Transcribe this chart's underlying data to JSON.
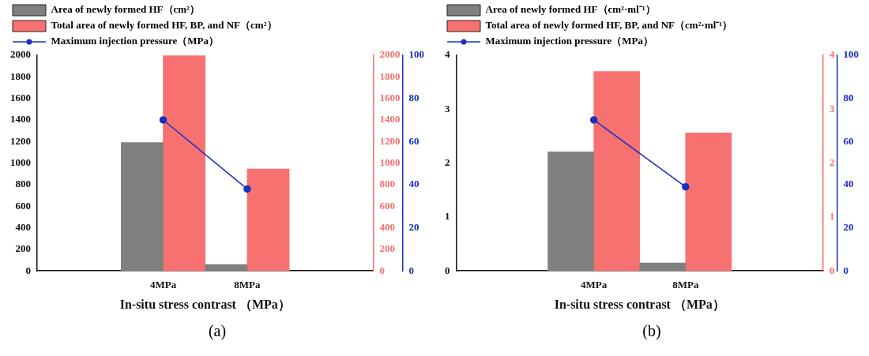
{
  "chart_data": [
    {
      "type": "bar",
      "xlabel": "In-situ stress contrast （MPa）",
      "categories": [
        null,
        "4MPa",
        "8MPa",
        null
      ],
      "legend": "top left",
      "grid": false,
      "marker": "circle",
      "series": [
        {
          "name": "Area of newly formed HF（cm²）",
          "color": "#808080",
          "axis": "y",
          "values": [
            null,
            1190,
            60,
            null
          ]
        },
        {
          "name": "Total area of newly formed HF, BP, and NF（cm²）",
          "color": "#f87171",
          "axis": "y2",
          "values": [
            null,
            1995,
            945,
            null
          ]
        },
        {
          "name": "Maximum injection pressure（MPa）",
          "type": "line",
          "color": "#1a2fc4",
          "axis": "y3",
          "values": [
            null,
            70,
            38,
            null
          ]
        }
      ],
      "ylim": [
        0,
        2000
      ],
      "yticks": [
        0,
        200,
        400,
        600,
        800,
        1000,
        1200,
        1400,
        1600,
        1800,
        2000
      ],
      "y2lim": [
        0,
        2000
      ],
      "y2ticks": [
        0,
        200,
        400,
        600,
        800,
        1000,
        1200,
        1400,
        1600,
        1800,
        2000
      ],
      "y3lim": [
        0,
        100
      ],
      "y3ticks": [
        0,
        20,
        40,
        60,
        80,
        100
      ],
      "annotations": [
        "(a)"
      ]
    },
    {
      "type": "bar",
      "xlabel": "In-situ stress contrast （MPa）",
      "categories": [
        null,
        "4MPa",
        "8MPa",
        null
      ],
      "legend": "top left",
      "grid": false,
      "marker": "circle",
      "series": [
        {
          "name": "Area of newly formed HF（cm²·ml⁻¹）",
          "color": "#808080",
          "axis": "y",
          "values": [
            null,
            2.21,
            0.15,
            null
          ]
        },
        {
          "name": "Total area of newly formed HF, BP, and NF（cm²·ml⁻¹）",
          "color": "#f87171",
          "axis": "y2",
          "values": [
            null,
            3.7,
            2.56,
            null
          ]
        },
        {
          "name": "Maximum injection pressure（MPa）",
          "type": "line",
          "color": "#1a2fc4",
          "axis": "y3",
          "values": [
            null,
            70,
            39,
            null
          ]
        }
      ],
      "ylim": [
        0,
        4
      ],
      "yticks": [
        0,
        1,
        2,
        3,
        4
      ],
      "y2lim": [
        0,
        4
      ],
      "y2ticks": [
        0,
        1,
        2,
        3,
        4
      ],
      "y3lim": [
        0,
        100
      ],
      "y3ticks": [
        0,
        20,
        40,
        60,
        80,
        100
      ],
      "annotations": [
        "(b)"
      ]
    }
  ]
}
